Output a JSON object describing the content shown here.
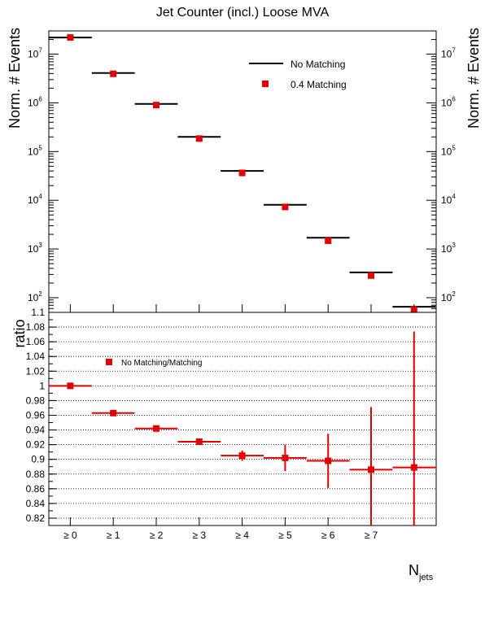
{
  "title": "Jet Counter (incl.) Loose MVA",
  "chart_data": [
    {
      "type": "bar",
      "panel": "upper",
      "scale": "log",
      "ylabel": "Norm. # Events",
      "ylabel_right": "Norm. # Events",
      "ylim": [
        50,
        30000000
      ],
      "grid": false,
      "legend_position": "top-right",
      "y_ticks": [
        {
          "value": 100,
          "base": "10",
          "exp": "2"
        },
        {
          "value": 1000,
          "base": "10",
          "exp": "3"
        },
        {
          "value": 10000,
          "base": "10",
          "exp": "4"
        },
        {
          "value": 100000,
          "base": "10",
          "exp": "5"
        },
        {
          "value": 1000000,
          "base": "10",
          "exp": "6"
        },
        {
          "value": 10000000,
          "base": "10",
          "exp": "7"
        }
      ],
      "categories": [
        "≥ 0",
        "≥ 1",
        "≥ 2",
        "≥ 3",
        "≥ 4",
        "≥ 5",
        "≥ 6",
        "≥ 7",
        ""
      ],
      "series": [
        {
          "name": "No Matching",
          "style": "line",
          "color": "#000000",
          "values": [
            22000000,
            4100000,
            950000,
            200000,
            40000,
            8100,
            1700,
            330,
            65
          ]
        },
        {
          "name": "0.4 Matching",
          "style": "marker",
          "color": "#e30000",
          "values": [
            22000000,
            3950000,
            900000,
            185000,
            36500,
            7300,
            1480,
            285,
            57
          ]
        }
      ]
    },
    {
      "type": "scatter",
      "panel": "lower",
      "ylabel": "ratio",
      "ylim": [
        0.81,
        1.1
      ],
      "grid": true,
      "legend_position": "top-left",
      "y_ticks": [
        "0.82",
        "0.84",
        "0.86",
        "0.88",
        "0.9",
        "0.92",
        "0.94",
        "0.96",
        "0.98",
        "1",
        "1.02",
        "1.04",
        "1.06",
        "1.08",
        "1.1"
      ],
      "categories": [
        "≥ 0",
        "≥ 1",
        "≥ 2",
        "≥ 3",
        "≥ 4",
        "≥ 5",
        "≥ 6",
        "≥ 7",
        ""
      ],
      "xlabel_main": "N",
      "xlabel_sub": "jets",
      "series": [
        {
          "name": "No Matching/Matching",
          "color": "#e30000",
          "values": [
            1.0,
            0.963,
            0.942,
            0.924,
            0.905,
            0.902,
            0.898,
            0.886,
            0.889
          ],
          "errors": [
            0.0,
            0.002,
            0.002,
            0.003,
            0.007,
            0.018,
            0.037,
            0.085,
            0.185
          ]
        }
      ]
    }
  ]
}
